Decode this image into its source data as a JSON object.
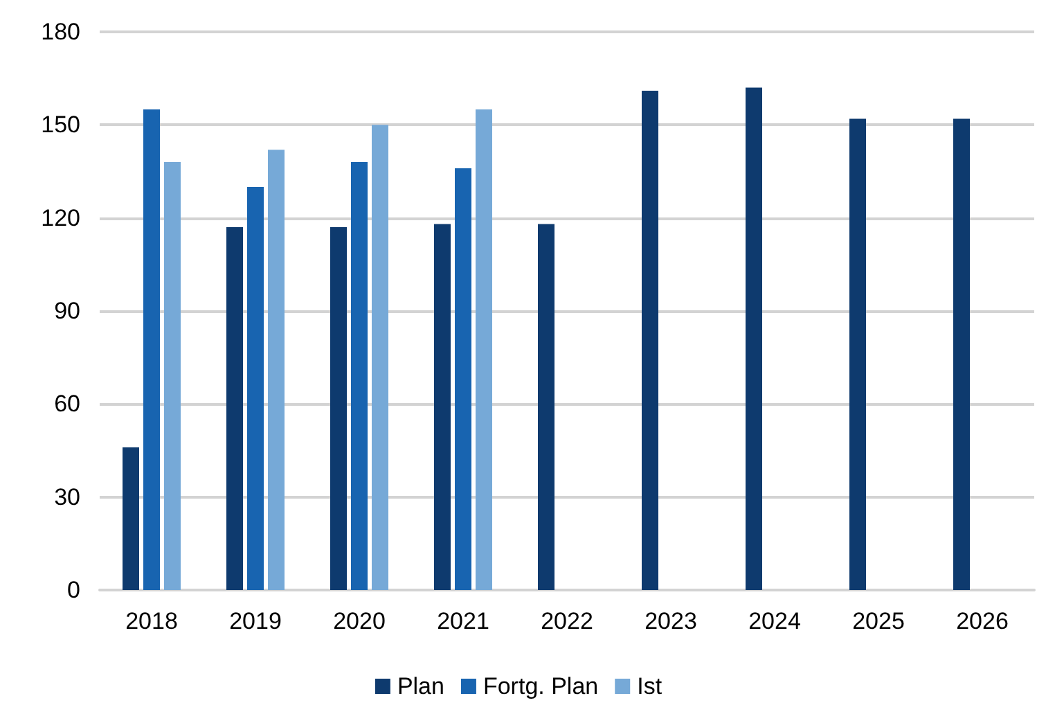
{
  "chart_data": {
    "type": "bar",
    "categories": [
      "2018",
      "2019",
      "2020",
      "2021",
      "2022",
      "2023",
      "2024",
      "2025",
      "2026"
    ],
    "series": [
      {
        "name": "Plan",
        "color": "#0e3a6e",
        "values": [
          46,
          117,
          117,
          118,
          118,
          161,
          162,
          152,
          152
        ]
      },
      {
        "name": "Fortg. Plan",
        "color": "#1864b0",
        "values": [
          155,
          130,
          138,
          136,
          null,
          null,
          null,
          null,
          null
        ]
      },
      {
        "name": "Ist",
        "color": "#76a9d7",
        "values": [
          138,
          142,
          150,
          155,
          null,
          null,
          null,
          null,
          null
        ]
      }
    ],
    "ylim": [
      0,
      180
    ],
    "yticks": [
      0,
      30,
      60,
      90,
      120,
      150,
      180
    ],
    "grid": "y",
    "legend": "bottom"
  }
}
